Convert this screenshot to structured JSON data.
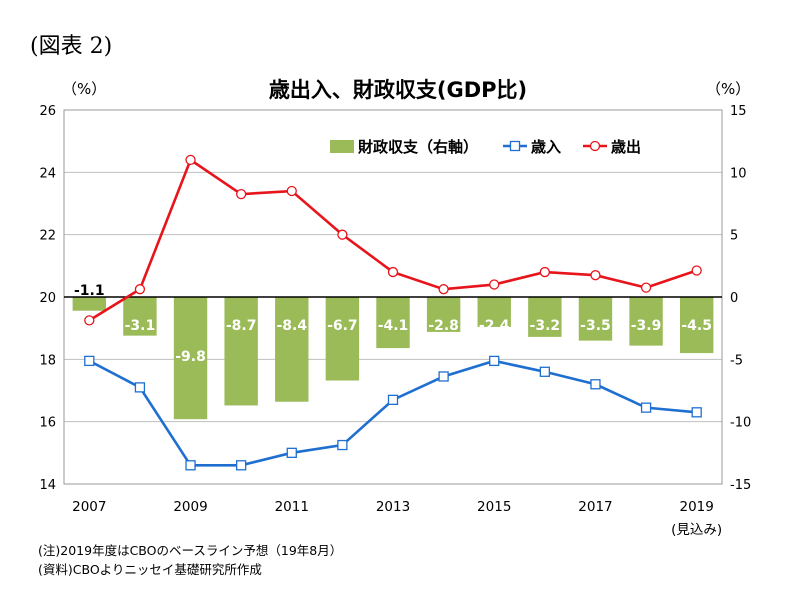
{
  "figure_label": "(図表 2)",
  "notes": {
    "note": "(注)2019年度はCBOのベースライン予想（19年8月）",
    "source": "(資料)CBOよりニッセイ基礎研究所作成"
  },
  "chart_data": {
    "type": "bar+line",
    "title": "歳出入、財政収支(GDP比)",
    "left_unit": "（%）",
    "right_unit": "（%）",
    "x_labels": [
      "2007",
      "2009",
      "2011",
      "2013",
      "2015",
      "2017",
      "2019"
    ],
    "x_extra_label": "(見込み)",
    "years": [
      2007,
      2008,
      2009,
      2010,
      2011,
      2012,
      2013,
      2014,
      2015,
      2016,
      2017,
      2018,
      2019
    ],
    "left_axis": {
      "min": 14,
      "max": 26,
      "ticks": [
        14,
        16,
        18,
        20,
        22,
        24,
        26
      ]
    },
    "right_axis": {
      "min": -15,
      "max": 15,
      "ticks": [
        -15,
        -10,
        -5,
        0,
        5,
        10,
        15
      ]
    },
    "grid": true,
    "legend_position": "top-center",
    "series": [
      {
        "name": "財政収支（右軸）",
        "type": "bar",
        "axis": "right",
        "color": "#9bbb59",
        "values": [
          -1.1,
          -3.1,
          -9.8,
          -8.7,
          -8.4,
          -6.7,
          -4.1,
          -2.8,
          -2.4,
          -3.2,
          -3.5,
          -3.9,
          -4.5
        ],
        "labels": [
          "-1.1",
          "-3.1",
          "-9.8",
          "-8.7",
          "-8.4",
          "-6.7",
          "-4.1",
          "-2.8",
          "-2.4",
          "-3.2",
          "-3.5",
          "-3.9",
          "-4.5"
        ]
      },
      {
        "name": "歳入",
        "type": "line",
        "axis": "left",
        "color": "#1f6fd1",
        "marker": "square",
        "values": [
          17.95,
          17.1,
          14.6,
          14.6,
          15.0,
          15.25,
          16.7,
          17.45,
          17.95,
          17.6,
          17.2,
          16.45,
          16.3
        ]
      },
      {
        "name": "歳出",
        "type": "line",
        "axis": "left",
        "color": "#e8141b",
        "marker": "circle",
        "values": [
          19.25,
          20.25,
          24.4,
          23.3,
          23.4,
          22.0,
          20.8,
          20.25,
          20.4,
          20.8,
          20.7,
          20.3,
          20.85
        ]
      }
    ]
  }
}
